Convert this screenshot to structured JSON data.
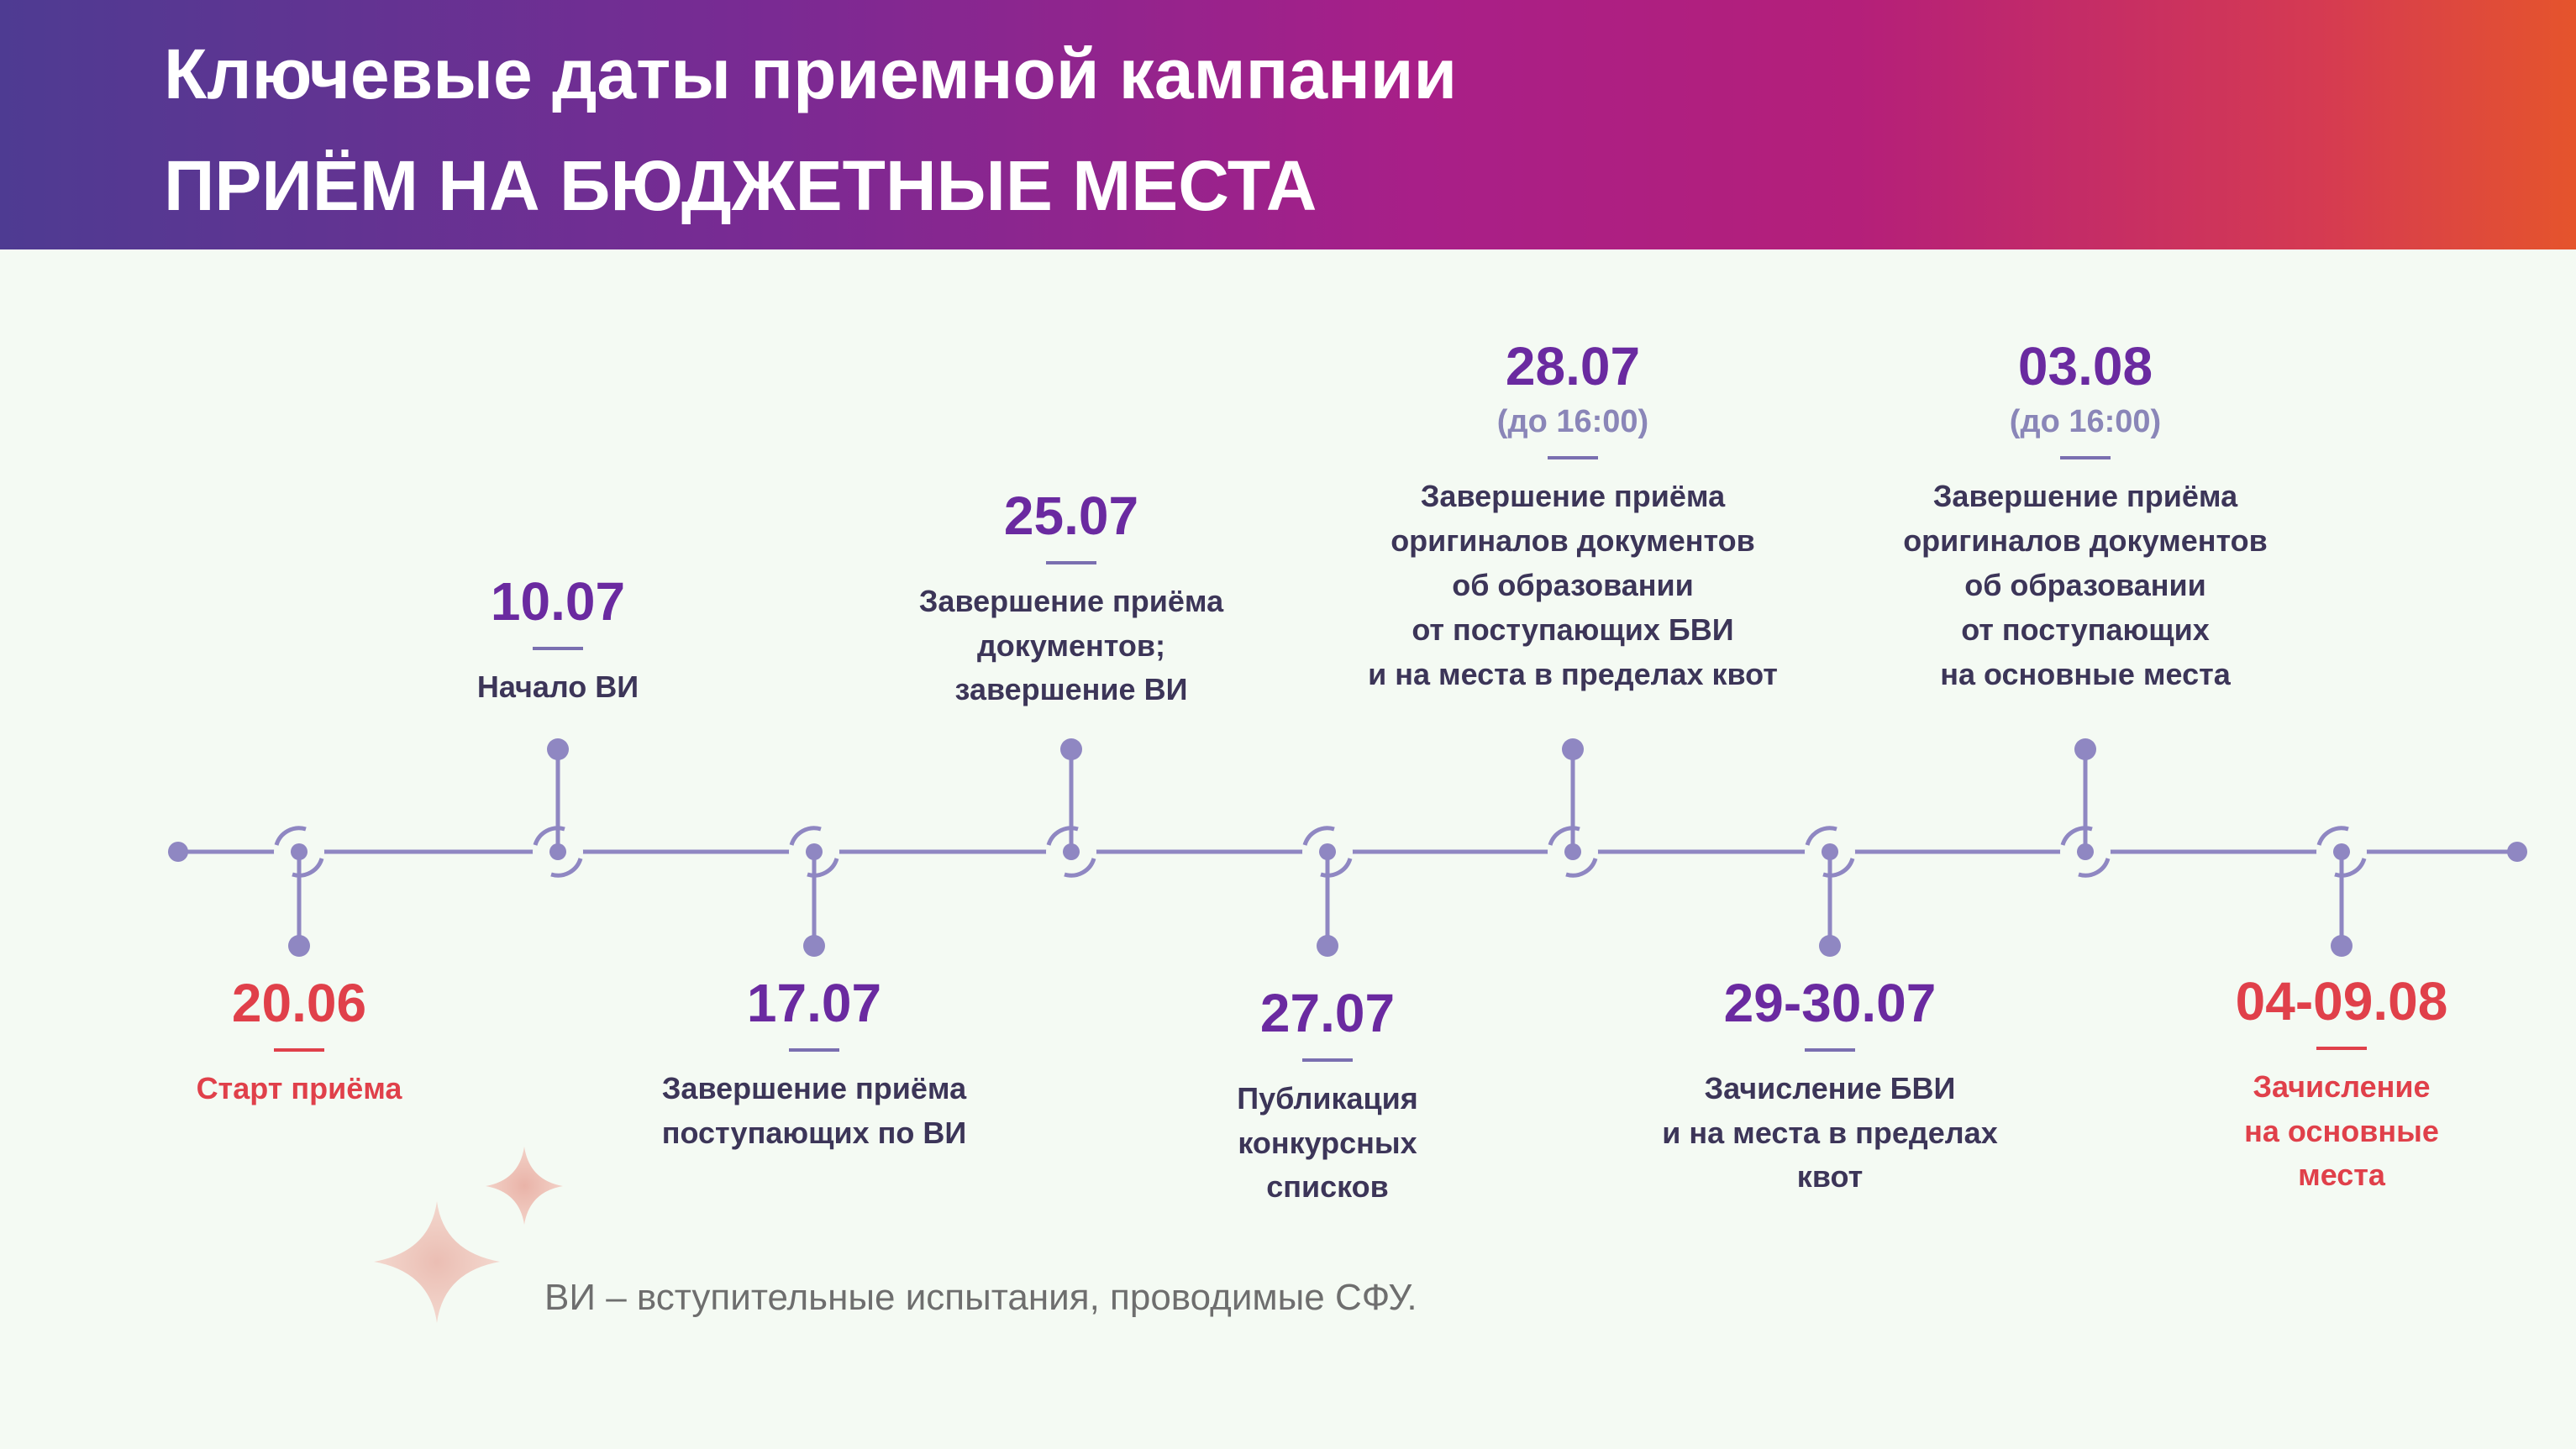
{
  "header": {
    "title": "Ключевые даты приемной кампании",
    "subtitle": "ПРИЁМ НА БЮДЖЕТНЫЕ МЕСТА"
  },
  "colors": {
    "line": "#8f87c2",
    "accent_purple": "#6a2aa0",
    "accent_red": "#e0404a",
    "text_dark": "#3c3558"
  },
  "events": [
    {
      "date": "20.06",
      "note": "",
      "label": "Старт приёма",
      "accent": "red",
      "position": "below"
    },
    {
      "date": "10.07",
      "note": "",
      "label": "Начало ВИ",
      "accent": "purple",
      "position": "above"
    },
    {
      "date": "17.07",
      "note": "",
      "label": "Завершение приёма\nпоступающих по ВИ",
      "accent": "purple",
      "position": "below"
    },
    {
      "date": "25.07",
      "note": "",
      "label": "Завершение приёма\nдокументов;\nзавершение ВИ",
      "accent": "purple",
      "position": "above"
    },
    {
      "date": "27.07",
      "note": "",
      "label": "Публикация\nконкурсных\nсписков",
      "accent": "purple",
      "position": "below"
    },
    {
      "date": "28.07",
      "note": "(до 16:00)",
      "label": "Завершение приёма\nоригиналов документов\nоб образовании\nот поступающих БВИ\nи на места в пределах квот",
      "accent": "purple",
      "position": "above"
    },
    {
      "date": "29-30.07",
      "note": "",
      "label": "Зачисление БВИ\nи на места в пределах\nквот",
      "accent": "purple",
      "position": "below"
    },
    {
      "date": "03.08",
      "note": "(до 16:00)",
      "label": "Завершение приёма\nоригиналов документов\nоб образовании\nот поступающих\nна основные места",
      "accent": "purple",
      "position": "above"
    },
    {
      "date": "04-09.08",
      "note": "",
      "label": "Зачисление\nна основные\nместа",
      "accent": "red",
      "position": "below"
    }
  ],
  "footnote": "ВИ – вступительные испытания, проводимые  СФУ."
}
